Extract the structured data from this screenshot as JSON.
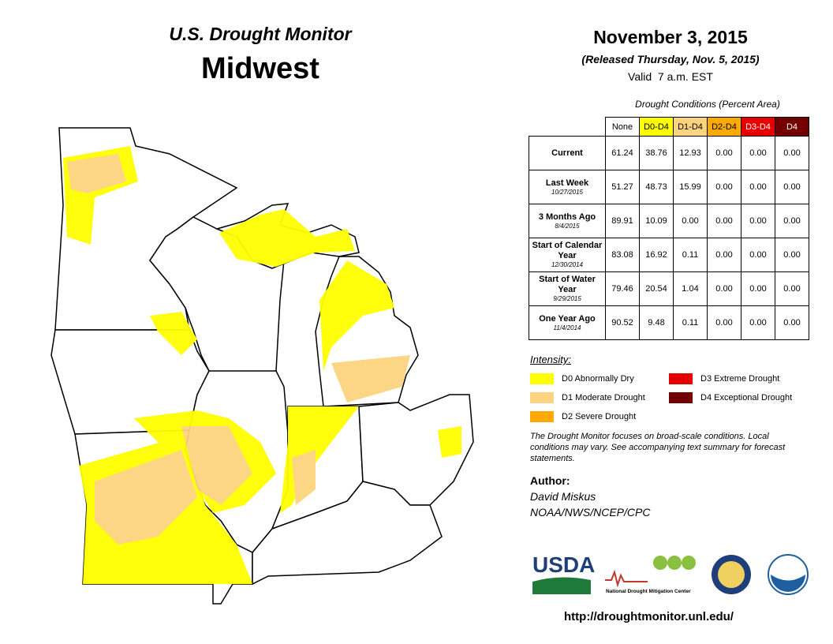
{
  "header": {
    "title": "U.S. Drought Monitor",
    "region": "Midwest"
  },
  "date": {
    "valid_date": "November 3, 2015",
    "released": "(Released Thursday, Nov. 5, 2015)",
    "valid_time": "Valid  7 a.m. EST"
  },
  "table": {
    "caption": "Drought Conditions (Percent Area)",
    "columns": [
      "None",
      "D0-D4",
      "D1-D4",
      "D2-D4",
      "D3-D4",
      "D4"
    ],
    "column_colors": [
      "#ffffff",
      "#ffff00",
      "#fcd37f",
      "#ffaa00",
      "#e60000",
      "#730000"
    ],
    "rows": [
      {
        "label": "Current",
        "values": [
          "61.24",
          "38.76",
          "12.93",
          "0.00",
          "0.00",
          "0.00"
        ]
      },
      {
        "label": "Last Week",
        "date": "10/27/2015",
        "values": [
          "51.27",
          "48.73",
          "15.99",
          "0.00",
          "0.00",
          "0.00"
        ]
      },
      {
        "label": "3 Months Ago",
        "date": "8/4/2015",
        "values": [
          "89.91",
          "10.09",
          "0.00",
          "0.00",
          "0.00",
          "0.00"
        ]
      },
      {
        "label": "Start of Calendar Year",
        "date": "12/30/2014",
        "values": [
          "83.08",
          "16.92",
          "0.11",
          "0.00",
          "0.00",
          "0.00"
        ]
      },
      {
        "label": "Start of Water Year",
        "date": "9/29/2015",
        "values": [
          "79.46",
          "20.54",
          "1.04",
          "0.00",
          "0.00",
          "0.00"
        ]
      },
      {
        "label": "One Year Ago",
        "date": "11/4/2014",
        "values": [
          "90.52",
          "9.48",
          "0.11",
          "0.00",
          "0.00",
          "0.00"
        ]
      }
    ]
  },
  "legend": {
    "title": "Intensity:",
    "items": [
      {
        "label": "D0 Abnormally Dry",
        "color": "#ffff00"
      },
      {
        "label": "D1 Moderate Drought",
        "color": "#fcd37f"
      },
      {
        "label": "D2 Severe Drought",
        "color": "#ffaa00"
      },
      {
        "label": "D3 Extreme Drought",
        "color": "#e60000"
      },
      {
        "label": "D4 Exceptional Drought",
        "color": "#730000"
      }
    ]
  },
  "note": "The Drought Monitor focuses on broad-scale conditions. Local conditions may vary. See accompanying text summary for forecast statements.",
  "author": {
    "heading": "Author:",
    "name": "David Miskus",
    "affiliation": "NOAA/NWS/NCEP/CPC"
  },
  "logos": {
    "usda": "USDA",
    "ndmc": "National Drought Mitigation Center"
  },
  "url": "http://droughtmonitor.unl.edu/"
}
